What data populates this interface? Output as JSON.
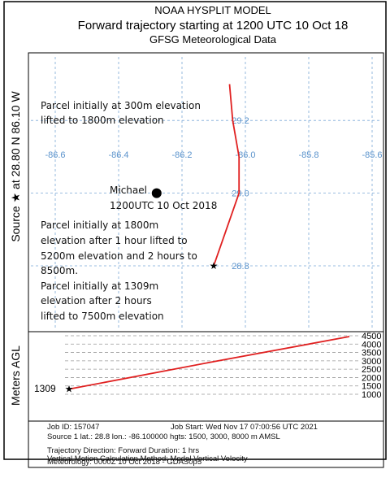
{
  "header": {
    "title": "NOAA HYSPLIT MODEL",
    "subtitle": "Forward trajectory starting at 1200 UTC 10 Oct 18",
    "source_line": "GFSG Meteorological Data"
  },
  "side_label": "Source ★ at   28.80 N   86.10 W",
  "map": {
    "lon_ticks": [
      -86.6,
      -86.4,
      -86.2,
      -86.0,
      -85.8,
      -85.6
    ],
    "lon_tick_labels": [
      "-86.6",
      "-86.4",
      "-86.2",
      "-86.0",
      "-85.8",
      "-85.6"
    ],
    "lat_ticks": [
      29.2,
      29.0,
      28.8
    ],
    "lat_tick_labels": [
      "29.2",
      "29.0",
      "28.8"
    ],
    "annotations": [
      [
        "Parcel initially at 300m elevation",
        "lifted to 1800m elevation"
      ],
      [
        "Parcel initially at 1800m",
        "elevation after 1 hour lifted to",
        "5200m elevation and 2 hours to",
        "8500m.",
        "Parcel initially at 1309m",
        "elevation after 2 hours",
        "lifted to 7500m elevation"
      ]
    ],
    "storm": {
      "name": "Michael",
      "time": "1200UTC 10 Oct 2018",
      "lon": -86.28,
      "lat": 29.0
    },
    "trajectory": {
      "lon": [
        -86.1,
        -86.06,
        -86.02,
        -86.02,
        -86.04,
        -86.05
      ],
      "lat": [
        28.8,
        28.9,
        29.0,
        29.1,
        29.2,
        29.3
      ]
    }
  },
  "height_panel": {
    "y_label": "Meters AGL",
    "yticks": [
      4500,
      4000,
      3500,
      3000,
      2500,
      2000,
      1500,
      1000
    ],
    "start_label": "1309",
    "heights": [
      1309,
      2900,
      4450
    ]
  },
  "footer": [
    "Job ID: 157047",
    "Job Start: Wed Nov 17 07:00:56 UTC 2021",
    "Source 1 lat.: 28.8  lon.: -86.100000  hgts: 1500, 3000, 8000 m AMSL",
    "Trajectory Direction: Forward     Duration: 1 hrs",
    "Vertical Motion Calculation Method:     Model Vertical Velocity",
    "Meteorology: 0000Z 10 Oct 2018 - GDAS0p5"
  ]
}
